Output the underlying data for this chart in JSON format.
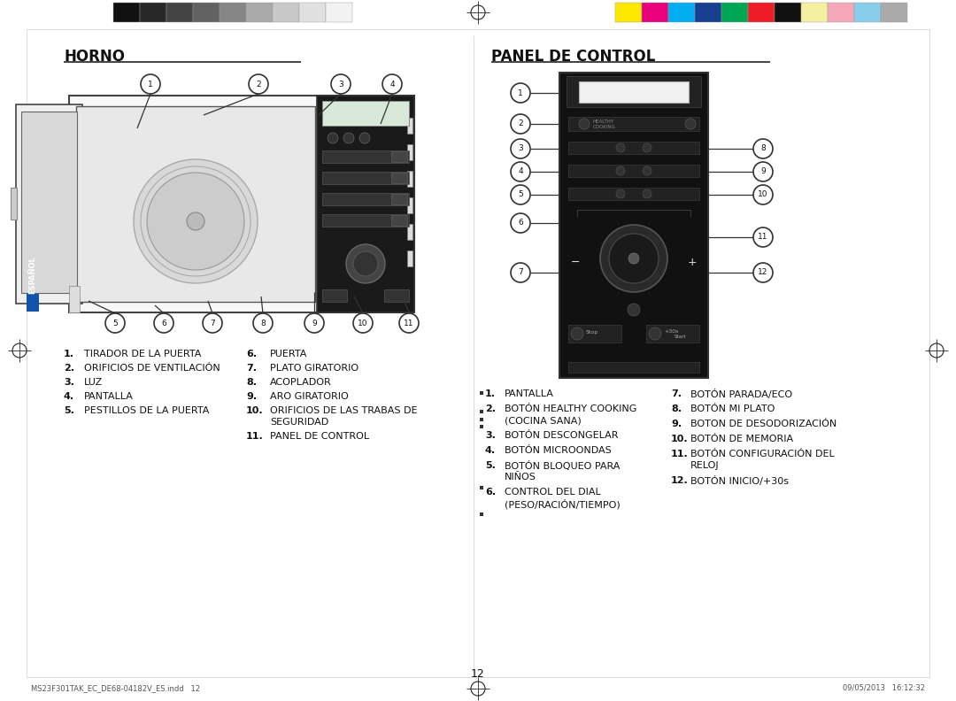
{
  "page_bg": "#ffffff",
  "title_horno": "HORNO",
  "title_panel": "PANEL DE CONTROL",
  "page_number": "12",
  "footer_left": "MS23F301TAK_EC_DE68-04182V_ES.indd   12",
  "footer_right": "09/05/2013   16:12:32",
  "horno_items_left": [
    [
      "1.",
      "TIRADOR DE LA PUERTA"
    ],
    [
      "2.",
      "ORIFICIOS DE VENTILACIÓN"
    ],
    [
      "3.",
      "LUZ"
    ],
    [
      "4.",
      "PANTALLA"
    ],
    [
      "5.",
      "PESTILLOS DE LA PUERTA"
    ]
  ],
  "horno_items_right": [
    [
      "6.",
      "PUERTA"
    ],
    [
      "7.",
      "PLATO GIRATORIO"
    ],
    [
      "8.",
      "ACOPLADOR"
    ],
    [
      "9.",
      "ARO GIRATORIO"
    ],
    [
      "10.",
      "ORIFICIOS DE LAS TRABAS DE",
      "SEGURIDAD"
    ],
    [
      "11.",
      "PANEL DE CONTROL"
    ]
  ],
  "panel_items_left": [
    [
      "1.",
      "PANTALLA"
    ],
    [
      "2.",
      "BOTÓN HEALTHY COOKING",
      "(COCINA SANA)"
    ],
    [
      "3.",
      "BOTÓN DESCONGELAR"
    ],
    [
      "4.",
      "BOTÓN MICROONDAS"
    ],
    [
      "5.",
      "BOTÓN BLOQUEO PARA",
      "NIÑOS"
    ],
    [
      "6.",
      "CONTROL DEL DIAL",
      "(PESO/RACIÓN/TIEMPO)"
    ]
  ],
  "panel_items_right": [
    [
      "7.",
      "BOTÓN PARADA/ECO"
    ],
    [
      "8.",
      "BOTÓN MI PLATO"
    ],
    [
      "9.",
      "BOTON DE DESODORIZACIÓN"
    ],
    [
      "10.",
      "BOTÓN DE MEMORIA"
    ],
    [
      "11.",
      "BOTÓN CONFIGURACIÓN DEL",
      "RELOJ"
    ],
    [
      "12.",
      "BOTÓN INICIO/+30s"
    ]
  ],
  "gray_swatches": [
    "#111111",
    "#282828",
    "#444444",
    "#626262",
    "#868686",
    "#aaaaaa",
    "#c8c8c8",
    "#e0e0e0",
    "#f2f2f2"
  ],
  "color_swatches": [
    "#ffe800",
    "#e8007d",
    "#00adef",
    "#1a3e8f",
    "#00a651",
    "#ee1c25",
    "#111111",
    "#f5f0a0",
    "#f4a7b9",
    "#87ceeb",
    "#aaaaaa"
  ]
}
